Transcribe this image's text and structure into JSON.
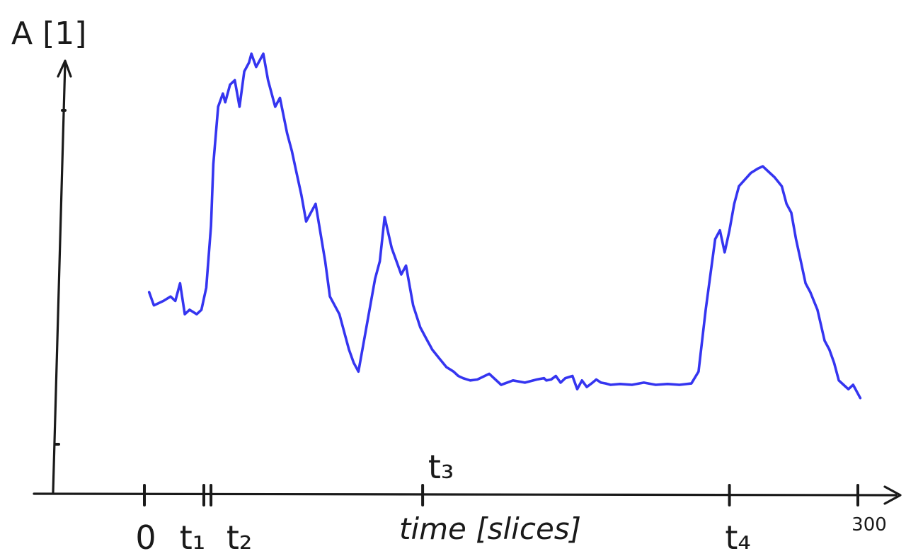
{
  "chart_data": {
    "type": "line",
    "ylabel": "A [1]",
    "xlabel": "time [slices]",
    "xlim": [
      0,
      300
    ],
    "ylim": [
      0,
      1
    ],
    "grid": false,
    "line_color": "#3535f0",
    "axis_color": "#1a1a1a",
    "x_ticks": [
      {
        "x": 0,
        "label": "0"
      },
      {
        "x": 25,
        "label": "t₁"
      },
      {
        "x": 28,
        "label": "t₂"
      },
      {
        "x": 117,
        "label": "t₃"
      },
      {
        "x": 246,
        "label": "t₄"
      },
      {
        "x": 300,
        "label": "300"
      }
    ],
    "series": [
      {
        "x": [
          2,
          4,
          8,
          11,
          13,
          15,
          17,
          19,
          22,
          24,
          26,
          28,
          29,
          31,
          33,
          34,
          36,
          38,
          40,
          42,
          44,
          45,
          47,
          50,
          52,
          55,
          57,
          60,
          62,
          64,
          66,
          68,
          72,
          76,
          78,
          82,
          86,
          88,
          90,
          93,
          97,
          99,
          101,
          104,
          108,
          110,
          113,
          116,
          119,
          120,
          121,
          124,
          127,
          130,
          132,
          134,
          137,
          140,
          145,
          150,
          155,
          160,
          165,
          168,
          169,
          171,
          173,
          175,
          177,
          180,
          182,
          184,
          186,
          188,
          190,
          192,
          194,
          196,
          200,
          205,
          210,
          215,
          220,
          225,
          230,
          233,
          236,
          240,
          242,
          244,
          246,
          248,
          250,
          255,
          258,
          260,
          263,
          265,
          268,
          270,
          272,
          274,
          276,
          278,
          280,
          283,
          286,
          288,
          290,
          292,
          294,
          296,
          298,
          301
        ],
        "y": [
          0.46,
          0.43,
          0.44,
          0.45,
          0.44,
          0.48,
          0.41,
          0.42,
          0.41,
          0.42,
          0.47,
          0.61,
          0.75,
          0.88,
          0.91,
          0.89,
          0.93,
          0.94,
          0.88,
          0.96,
          0.98,
          1.0,
          0.97,
          1.0,
          0.94,
          0.88,
          0.9,
          0.82,
          0.78,
          0.73,
          0.68,
          0.62,
          0.66,
          0.53,
          0.45,
          0.41,
          0.33,
          0.3,
          0.28,
          0.37,
          0.49,
          0.53,
          0.63,
          0.56,
          0.5,
          0.52,
          0.43,
          0.38,
          0.35,
          0.34,
          0.33,
          0.31,
          0.29,
          0.28,
          0.27,
          0.265,
          0.26,
          0.262,
          0.275,
          0.25,
          0.26,
          0.255,
          0.262,
          0.265,
          0.26,
          0.262,
          0.27,
          0.255,
          0.265,
          0.27,
          0.24,
          0.26,
          0.245,
          0.253,
          0.262,
          0.255,
          0.253,
          0.25,
          0.252,
          0.25,
          0.255,
          0.25,
          0.252,
          0.25,
          0.253,
          0.28,
          0.42,
          0.58,
          0.6,
          0.55,
          0.6,
          0.66,
          0.7,
          0.73,
          0.74,
          0.745,
          0.73,
          0.72,
          0.7,
          0.66,
          0.64,
          0.58,
          0.53,
          0.48,
          0.46,
          0.42,
          0.35,
          0.33,
          0.3,
          0.26,
          0.25,
          0.24,
          0.25,
          0.22
        ]
      }
    ]
  }
}
